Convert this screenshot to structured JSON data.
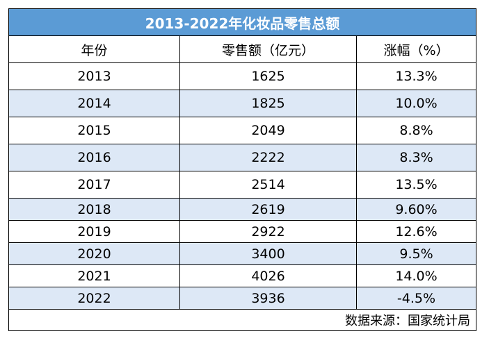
{
  "chart_data": {
    "type": "table",
    "title": "2013-2022年化妆品零售总额",
    "columns": [
      "年份",
      "零售额（亿元）",
      "涨幅（%）"
    ],
    "rows": [
      [
        "2013",
        "1625",
        "13.3%"
      ],
      [
        "2014",
        "1825",
        "10.0%"
      ],
      [
        "2015",
        "2049",
        "8.8%"
      ],
      [
        "2016",
        "2222",
        "8.3%"
      ],
      [
        "2017",
        "2514",
        "13.5%"
      ],
      [
        "2018",
        "2619",
        "9.60%"
      ],
      [
        "2019",
        "2922",
        "12.6%"
      ],
      [
        "2020",
        "3400",
        "9.5%"
      ],
      [
        "2021",
        "4026",
        "14.0%"
      ],
      [
        "2022",
        "3936",
        "-4.5%"
      ]
    ],
    "source": "数据来源：国家统计局",
    "colors": {
      "title_bg": "#5b9bd5",
      "title_text": "#ffffff",
      "alt_row_bg": "#dde8f6"
    }
  }
}
